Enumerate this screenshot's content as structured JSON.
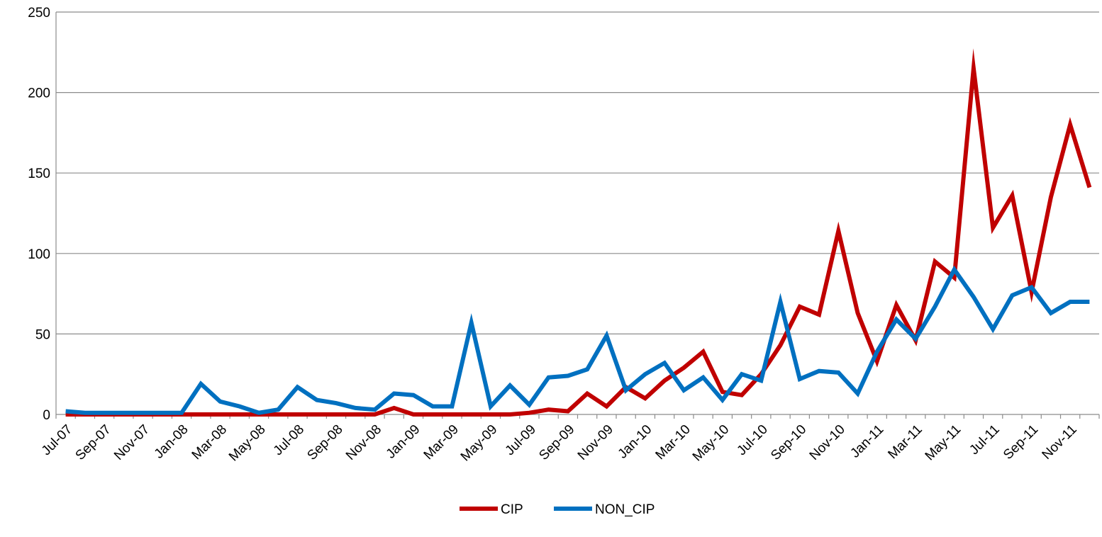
{
  "chart_data": {
    "type": "line",
    "title": "",
    "xlabel": "",
    "ylabel": "",
    "ylim": [
      0,
      250
    ],
    "yticks": [
      0,
      50,
      100,
      150,
      200,
      250
    ],
    "grid": true,
    "legend_position": "bottom",
    "x": [
      "Jul-07",
      "Aug-07",
      "Sep-07",
      "Oct-07",
      "Nov-07",
      "Dec-07",
      "Jan-08",
      "Feb-08",
      "Mar-08",
      "Apr-08",
      "May-08",
      "Jun-08",
      "Jul-08",
      "Aug-08",
      "Sep-08",
      "Oct-08",
      "Nov-08",
      "Dec-08",
      "Jan-09",
      "Feb-09",
      "Mar-09",
      "Apr-09",
      "May-09",
      "Jun-09",
      "Jul-09",
      "Aug-09",
      "Sep-09",
      "Oct-09",
      "Nov-09",
      "Dec-09",
      "Jan-10",
      "Feb-10",
      "Mar-10",
      "Apr-10",
      "May-10",
      "Jun-10",
      "Jul-10",
      "Aug-10",
      "Sep-10",
      "Oct-10",
      "Nov-10",
      "Dec-10",
      "Jan-11",
      "Feb-11",
      "Mar-11",
      "Apr-11",
      "May-11",
      "Jun-11",
      "Jul-11",
      "Aug-11",
      "Sep-11",
      "Oct-11",
      "Nov-11",
      "Dec-11"
    ],
    "x_tick_labels": [
      "Jul-07",
      "Sep-07",
      "Nov-07",
      "Jan-08",
      "Mar-08",
      "May-08",
      "Jul-08",
      "Sep-08",
      "Nov-08",
      "Jan-09",
      "Mar-09",
      "May-09",
      "Jul-09",
      "Sep-09",
      "Nov-09",
      "Jan-10",
      "Mar-10",
      "May-10",
      "Jul-10",
      "Sep-10",
      "Nov-10",
      "Jan-11",
      "Mar-11",
      "May-11",
      "Jul-11",
      "Sep-11",
      "Nov-11"
    ],
    "series": [
      {
        "name": "CIP",
        "color": "#c00000",
        "values": [
          0,
          0,
          0,
          0,
          0,
          0,
          0,
          0,
          0,
          0,
          0,
          0,
          0,
          0,
          0,
          0,
          0,
          4,
          0,
          0,
          0,
          0,
          0,
          0,
          1,
          3,
          2,
          13,
          5,
          17,
          10,
          21,
          29,
          39,
          14,
          12,
          25,
          43,
          67,
          62,
          114,
          63,
          33,
          68,
          46,
          95,
          85,
          215,
          116,
          136,
          76,
          135,
          180,
          141
        ]
      },
      {
        "name": "NON_CIP",
        "color": "#0070c0",
        "values": [
          2,
          1,
          1,
          1,
          1,
          1,
          1,
          19,
          8,
          5,
          1,
          3,
          17,
          9,
          7,
          4,
          3,
          13,
          12,
          5,
          5,
          57,
          5,
          18,
          6,
          23,
          24,
          28,
          49,
          15,
          25,
          32,
          15,
          23,
          9,
          25,
          21,
          70,
          22,
          27,
          26,
          13,
          39,
          59,
          47,
          67,
          90,
          73,
          53,
          74,
          79,
          63,
          70,
          70
        ]
      }
    ]
  }
}
